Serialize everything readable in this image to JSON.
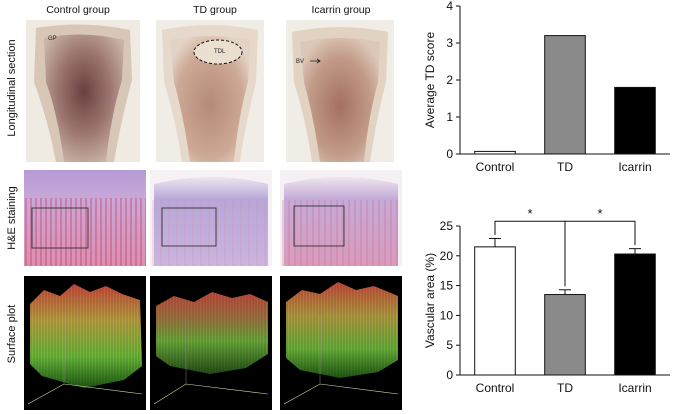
{
  "column_titles": [
    "Control group",
    "TD group",
    "Icarrin group"
  ],
  "row_labels": [
    "Longitudinal section",
    "H&E staining",
    "Surface plot"
  ],
  "photo_annotations": {
    "control": "GP",
    "td": "TDL",
    "icarrin": "BV"
  },
  "colors": {
    "white_bar": "#ffffff",
    "gray_bar": "#8a8a8a",
    "black_bar": "#000000"
  },
  "chart_data": [
    {
      "type": "bar",
      "categories": [
        "Control",
        "TD",
        "Icarrin"
      ],
      "values": [
        0.07,
        3.2,
        1.8
      ],
      "colors": [
        "#ffffff",
        "#8a8a8a",
        "#000000"
      ],
      "xlabel": "",
      "ylabel": "Average TD score",
      "ylim": [
        0,
        4
      ],
      "yticks": [
        "0",
        "1",
        "2",
        "3",
        "4"
      ]
    },
    {
      "type": "bar",
      "categories": [
        "Control",
        "TD",
        "Icarrin"
      ],
      "values": [
        21.5,
        13.5,
        20.3
      ],
      "errors": [
        1.4,
        0.8,
        0.9
      ],
      "colors": [
        "#ffffff",
        "#8a8a8a",
        "#000000"
      ],
      "xlabel": "",
      "ylabel": "Vascular area (%)",
      "ylim": [
        0,
        25
      ],
      "yticks": [
        "0",
        "5",
        "10",
        "15",
        "20",
        "25"
      ],
      "significance": [
        "*",
        "*"
      ]
    }
  ]
}
